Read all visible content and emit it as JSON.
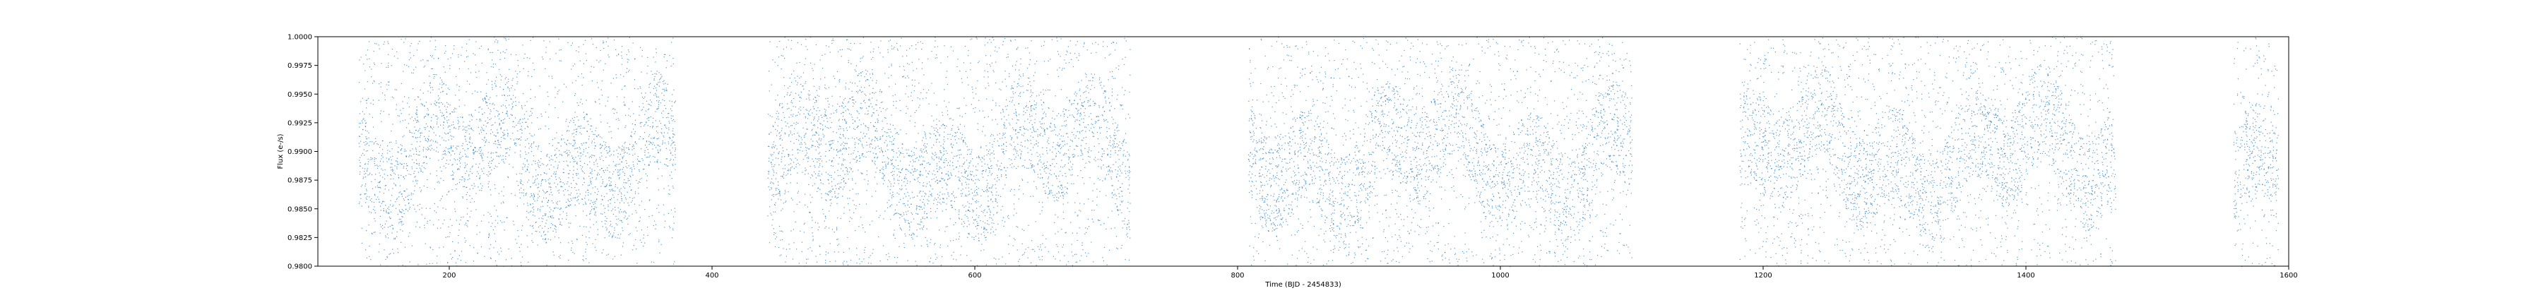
{
  "chart_data": {
    "type": "scatter",
    "title": "",
    "xlabel": "Time (BJD - 2454833)",
    "ylabel": "Flux (e-/s)",
    "xlim": [
      100,
      1600
    ],
    "ylim": [
      0.98,
      1.0
    ],
    "xticks": [
      200,
      400,
      600,
      800,
      1000,
      1200,
      1400,
      1600
    ],
    "xtick_labels": [
      "200",
      "400",
      "600",
      "800",
      "1000",
      "1200",
      "1400",
      "1600"
    ],
    "yticks": [
      0.98,
      0.9825,
      0.985,
      0.9875,
      0.99,
      0.9925,
      0.995,
      0.9975,
      1.0
    ],
    "ytick_labels": [
      "0.9800",
      "0.9825",
      "0.9850",
      "0.9875",
      "0.9900",
      "0.9925",
      "0.9950",
      "0.9975",
      "1.0000"
    ],
    "grid": false,
    "marker_color": "#1f77b4",
    "data_segments": [
      {
        "x": [
          131,
          372
        ]
      },
      {
        "x": [
          442,
          718
        ]
      },
      {
        "x": [
          808,
          1100
        ]
      },
      {
        "x": [
          1182,
          1468
        ]
      },
      {
        "x": [
          1558,
          1592
        ]
      }
    ]
  }
}
